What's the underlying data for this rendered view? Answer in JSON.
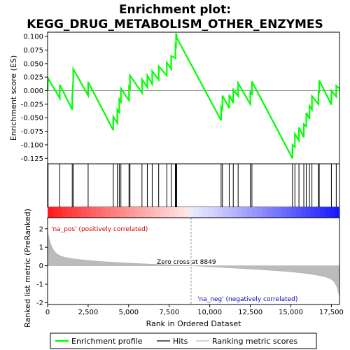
{
  "chart_data": {
    "type": "line",
    "title_line1": "Enrichment plot:",
    "title_line2": "KEGG_DRUG_METABOLISM_OTHER_ENZYMES",
    "xlabel": "Rank in Ordered Dataset",
    "ylabel_top": "Enrichment score (ES)",
    "ylabel_bottom": "Ranked list metric (PreRanked)",
    "xlim": [
      0,
      18000
    ],
    "xticks": [
      0,
      2500,
      5000,
      7500,
      10000,
      12500,
      15000,
      17500
    ],
    "xtick_labels": [
      "0",
      "2,500",
      "5,000",
      "7,500",
      "10,000",
      "12,500",
      "15,000",
      "17,500"
    ],
    "es_ylim": [
      -0.135,
      0.108
    ],
    "es_yticks": [
      -0.125,
      -0.1,
      -0.075,
      -0.05,
      -0.025,
      0.0,
      0.025,
      0.05,
      0.075,
      0.1
    ],
    "es_ytick_labels": [
      "-0.125",
      "-0.100",
      "-0.075",
      "-0.050",
      "-0.025",
      "0.000",
      "0.025",
      "0.050",
      "0.075",
      "0.100"
    ],
    "metric_ylim": [
      -2.1,
      2.6
    ],
    "metric_yticks": [
      -2,
      -1,
      0,
      1,
      2
    ],
    "metric_ytick_labels": [
      "-2",
      "-1",
      "0",
      "1",
      "2"
    ],
    "hits": [
      30,
      750,
      1520,
      1580,
      2500,
      4050,
      4300,
      4420,
      4520,
      5020,
      5080,
      5820,
      6150,
      6450,
      6850,
      7350,
      7620,
      7880,
      7920,
      7960,
      10700,
      10780,
      11200,
      11450,
      11750,
      12500,
      12600,
      15100,
      15250,
      15500,
      15800,
      15950,
      16150,
      16300,
      16700,
      16750,
      17500,
      17800
    ],
    "es_points": [
      [
        0,
        0.0
      ],
      [
        30,
        0.023
      ],
      [
        750,
        -0.014
      ],
      [
        751,
        0.011
      ],
      [
        1520,
        -0.035
      ],
      [
        1521,
        -0.01
      ],
      [
        1580,
        0.018
      ],
      [
        1581,
        0.04
      ],
      [
        2500,
        -0.009
      ],
      [
        2501,
        0.016
      ],
      [
        4050,
        -0.073
      ],
      [
        4051,
        -0.048
      ],
      [
        4300,
        -0.06
      ],
      [
        4301,
        -0.035
      ],
      [
        4420,
        -0.04
      ],
      [
        4421,
        -0.016
      ],
      [
        4520,
        -0.021
      ],
      [
        4521,
        0.004
      ],
      [
        5020,
        -0.018
      ],
      [
        5021,
        0.007
      ],
      [
        5080,
        0.004
      ],
      [
        5081,
        0.028
      ],
      [
        5820,
        -0.004
      ],
      [
        5821,
        0.021
      ],
      [
        6150,
        0.006
      ],
      [
        6151,
        0.028
      ],
      [
        6450,
        0.012
      ],
      [
        6451,
        0.036
      ],
      [
        6850,
        0.02
      ],
      [
        6851,
        0.045
      ],
      [
        7350,
        0.028
      ],
      [
        7351,
        0.052
      ],
      [
        7620,
        0.04
      ],
      [
        7621,
        0.064
      ],
      [
        7880,
        0.06
      ],
      [
        7881,
        0.084
      ],
      [
        7920,
        0.082
      ],
      [
        7921,
        0.106
      ],
      [
        7960,
        0.102
      ],
      [
        7961,
        0.098
      ],
      [
        10700,
        -0.055
      ],
      [
        10701,
        -0.03
      ],
      [
        10780,
        -0.034
      ],
      [
        10781,
        -0.009
      ],
      [
        11200,
        -0.032
      ],
      [
        11201,
        -0.008
      ],
      [
        11450,
        -0.023
      ],
      [
        11451,
        0.002
      ],
      [
        11750,
        -0.01
      ],
      [
        11751,
        0.014
      ],
      [
        12500,
        -0.025
      ],
      [
        12501,
        -0.001
      ],
      [
        12600,
        -0.008
      ],
      [
        12601,
        0.017
      ],
      [
        15100,
        -0.125
      ],
      [
        15101,
        -0.1
      ],
      [
        15250,
        -0.104
      ],
      [
        15251,
        -0.08
      ],
      [
        15500,
        -0.092
      ],
      [
        15501,
        -0.068
      ],
      [
        15800,
        -0.086
      ],
      [
        15801,
        -0.062
      ],
      [
        15950,
        -0.066
      ],
      [
        15951,
        -0.041
      ],
      [
        16150,
        -0.052
      ],
      [
        16151,
        -0.028
      ],
      [
        16300,
        -0.035
      ],
      [
        16301,
        -0.01
      ],
      [
        16700,
        -0.025
      ],
      [
        16701,
        0.0
      ],
      [
        16750,
        -0.005
      ],
      [
        16751,
        0.019
      ],
      [
        17500,
        -0.026
      ],
      [
        17501,
        0.0
      ],
      [
        17800,
        -0.011
      ],
      [
        17801,
        0.009
      ],
      [
        18000,
        0.004
      ]
    ],
    "pos_label": "'na_pos' (positively correlated)",
    "neg_label": "'na_neg' (negatively correlated)",
    "zero_cross_label": "Zero cross at 8849",
    "zero_cross": 8849,
    "legend": {
      "placement": "bottom",
      "entries": [
        {
          "label": "Enrichment profile",
          "color": "#00ff00"
        },
        {
          "label": "Hits",
          "color": "#000000"
        },
        {
          "label": "Ranking metric scores",
          "color": "#bbbbbb"
        }
      ]
    },
    "colors": {
      "es_line": "#00ff00",
      "metric_fill": "#bbbbbb",
      "pos_text": "#cc0000",
      "neg_text": "#0000bb",
      "zero_line": "#999999"
    }
  }
}
